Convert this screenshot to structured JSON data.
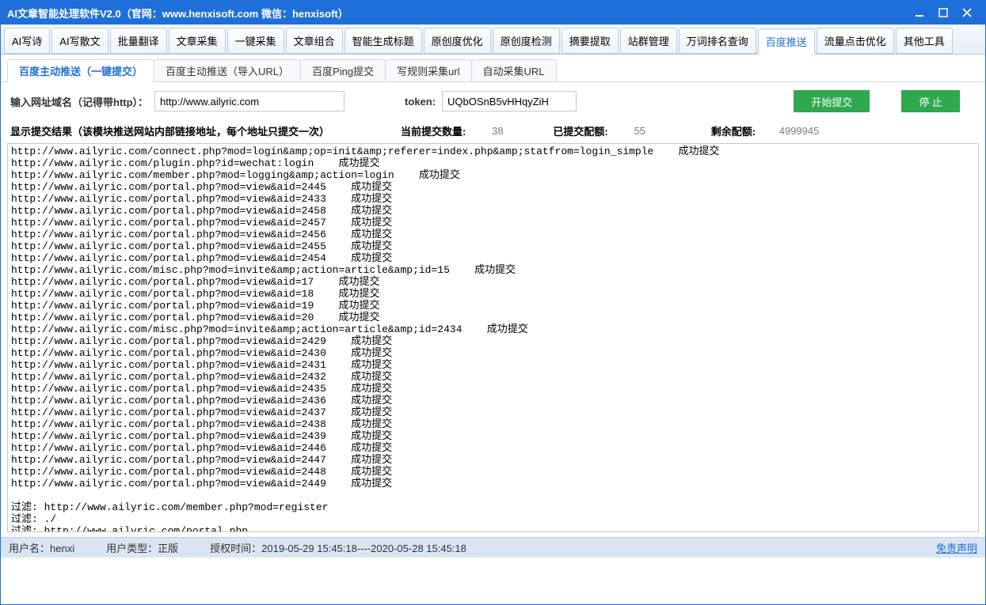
{
  "titlebar": {
    "title": "AI文章智能处理软件V2.0（官网：www.henxisoft.com  微信：henxisoft）"
  },
  "toolbar": [
    "AI写诗",
    "AI写散文",
    "批量翻译",
    "文章采集",
    "一键采集",
    "文章组合",
    "智能生成标题",
    "原创度优化",
    "原创度检测",
    "摘要提取",
    "站群管理",
    "万词排名查询",
    "百度推送",
    "流量点击优化",
    "其他工具"
  ],
  "toolbar_active": 12,
  "subtabs": [
    "百度主动推送（一键提交）",
    "百度主动推送（导入URL）",
    "百度Ping提交",
    "写规则采集url",
    "自动采集URL"
  ],
  "subtab_active": 0,
  "form": {
    "domain_label": "输入网址域名（记得带http）：",
    "domain_value": "http://www.ailyric.com",
    "token_label": "token:",
    "token_value": "UQbOSnB5vHHqyZiH",
    "start_btn": "开始提交",
    "stop_btn": "停 止"
  },
  "stats": {
    "result_label": "显示提交结果（该模块推送网站内部链接地址，每个地址只提交一次）",
    "current_label": "当前提交数量:",
    "current_value": "38",
    "submitted_label": "已提交配额:",
    "submitted_value": "55",
    "remaining_label": "剩余配额:",
    "remaining_value": "4999945"
  },
  "log_lines": [
    "http://www.ailyric.com/connect.php?mod=login&amp;op=init&amp;referer=index.php&amp;statfrom=login_simple    成功提交",
    "http://www.ailyric.com/plugin.php?id=wechat:login    成功提交",
    "http://www.ailyric.com/member.php?mod=logging&amp;action=login    成功提交",
    "http://www.ailyric.com/portal.php?mod=view&aid=2445    成功提交",
    "http://www.ailyric.com/portal.php?mod=view&aid=2433    成功提交",
    "http://www.ailyric.com/portal.php?mod=view&aid=2458    成功提交",
    "http://www.ailyric.com/portal.php?mod=view&aid=2457    成功提交",
    "http://www.ailyric.com/portal.php?mod=view&aid=2456    成功提交",
    "http://www.ailyric.com/portal.php?mod=view&aid=2455    成功提交",
    "http://www.ailyric.com/portal.php?mod=view&aid=2454    成功提交",
    "http://www.ailyric.com/misc.php?mod=invite&amp;action=article&amp;id=15    成功提交",
    "http://www.ailyric.com/portal.php?mod=view&aid=17    成功提交",
    "http://www.ailyric.com/portal.php?mod=view&aid=18    成功提交",
    "http://www.ailyric.com/portal.php?mod=view&aid=19    成功提交",
    "http://www.ailyric.com/portal.php?mod=view&aid=20    成功提交",
    "http://www.ailyric.com/misc.php?mod=invite&amp;action=article&amp;id=2434    成功提交",
    "http://www.ailyric.com/portal.php?mod=view&aid=2429    成功提交",
    "http://www.ailyric.com/portal.php?mod=view&aid=2430    成功提交",
    "http://www.ailyric.com/portal.php?mod=view&aid=2431    成功提交",
    "http://www.ailyric.com/portal.php?mod=view&aid=2432    成功提交",
    "http://www.ailyric.com/portal.php?mod=view&aid=2435    成功提交",
    "http://www.ailyric.com/portal.php?mod=view&aid=2436    成功提交",
    "http://www.ailyric.com/portal.php?mod=view&aid=2437    成功提交",
    "http://www.ailyric.com/portal.php?mod=view&aid=2438    成功提交",
    "http://www.ailyric.com/portal.php?mod=view&aid=2439    成功提交",
    "http://www.ailyric.com/portal.php?mod=view&aid=2446    成功提交",
    "http://www.ailyric.com/portal.php?mod=view&aid=2447    成功提交",
    "http://www.ailyric.com/portal.php?mod=view&aid=2448    成功提交",
    "http://www.ailyric.com/portal.php?mod=view&aid=2449    成功提交",
    "",
    "过滤: http://www.ailyric.com/member.php?mod=register",
    "过滤: ./",
    "过滤: http://www.ailyric.com/portal.php"
  ],
  "footer": {
    "user_label": "用户名：",
    "user_value": "henxi",
    "type_label": "用户类型：",
    "type_value": "正版",
    "auth_label": "授权时间：",
    "auth_value": "2019-05-29 15:45:18----2020-05-28 15:45:18",
    "disclaimer": "免责声明"
  }
}
